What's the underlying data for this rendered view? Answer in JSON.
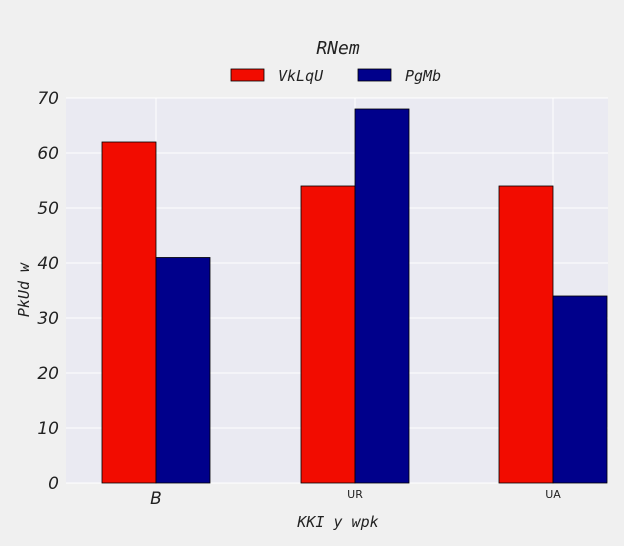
{
  "chart_data": {
    "type": "bar",
    "title": "RNem",
    "xlabel": "KKI y wpk",
    "ylabel": "PkUd w",
    "categories": [
      "B",
      "UR",
      "UA"
    ],
    "series": [
      {
        "name": "VkLqU",
        "color": "#f20c00",
        "values": [
          62,
          54,
          54
        ]
      },
      {
        "name": "PgMb",
        "color": "#00008b",
        "values": [
          41,
          68,
          34
        ]
      }
    ],
    "ylim": [
      0,
      70
    ],
    "yticks": [
      0,
      10,
      20,
      30,
      40,
      50,
      60,
      70
    ],
    "grid": true,
    "legend_position": "top-center",
    "plot_background": "#eaeaf2",
    "grid_color": "#ffffff"
  }
}
